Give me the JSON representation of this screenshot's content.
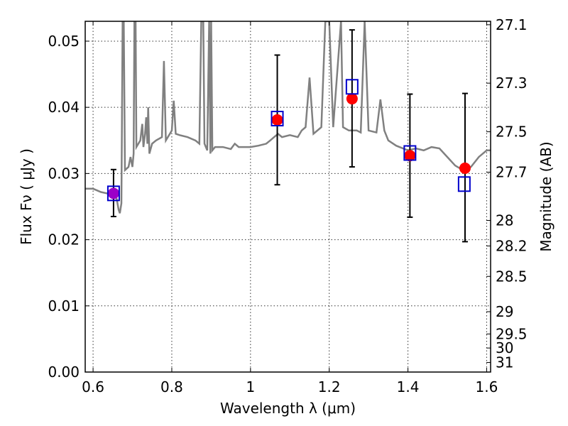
{
  "chart_data": {
    "type": "scatter",
    "xlabel": "Wavelength  λ (μm)",
    "ylabel": "Flux  Fν  ( μJy )",
    "ylabel_right": "Magnitude (AB)",
    "xlim": [
      0.58,
      1.61
    ],
    "ylim": [
      0.0,
      0.053
    ],
    "grid": true,
    "x_ticks": [
      0.6,
      0.8,
      1.0,
      1.2,
      1.4,
      1.6
    ],
    "x_tick_labels": [
      "0.6",
      "0.8",
      "1",
      "1.2",
      "1.4",
      "1.6"
    ],
    "y_ticks": [
      0.0,
      0.01,
      0.02,
      0.03,
      0.04,
      0.05
    ],
    "y_tick_labels": [
      "0.00",
      "0.01",
      "0.02",
      "0.03",
      "0.04",
      "0.05"
    ],
    "right_ticks": [
      {
        "label": "27.1",
        "value": 27.1
      },
      {
        "label": "27.3",
        "value": 27.3
      },
      {
        "label": "27.5",
        "value": 27.5
      },
      {
        "label": "27.7",
        "value": 27.7
      },
      {
        "label": "28",
        "value": 28.0
      },
      {
        "label": "28.2",
        "value": 28.2
      },
      {
        "label": "28.5",
        "value": 28.5
      },
      {
        "label": "29",
        "value": 29.0
      },
      {
        "label": "29.5",
        "value": 29.5
      },
      {
        "label": "30",
        "value": 30.0
      },
      {
        "label": "31",
        "value": 31.0
      }
    ],
    "series": [
      {
        "type": "line",
        "color": "#808080",
        "points": [
          [
            0.58,
            0.0277
          ],
          [
            0.6,
            0.0277
          ],
          [
            0.62,
            0.0272
          ],
          [
            0.635,
            0.027
          ],
          [
            0.645,
            0.0268
          ],
          [
            0.66,
            0.0262
          ],
          [
            0.665,
            0.0245
          ],
          [
            0.668,
            0.024
          ],
          [
            0.672,
            0.0255
          ],
          [
            0.675,
            0.053
          ],
          [
            0.678,
            0.053
          ],
          [
            0.681,
            0.0305
          ],
          [
            0.69,
            0.031
          ],
          [
            0.695,
            0.0325
          ],
          [
            0.7,
            0.031
          ],
          [
            0.703,
            0.033
          ],
          [
            0.705,
            0.053
          ],
          [
            0.708,
            0.053
          ],
          [
            0.71,
            0.034
          ],
          [
            0.72,
            0.035
          ],
          [
            0.725,
            0.0375
          ],
          [
            0.728,
            0.034
          ],
          [
            0.732,
            0.036
          ],
          [
            0.735,
            0.0385
          ],
          [
            0.738,
            0.0345
          ],
          [
            0.74,
            0.04
          ],
          [
            0.743,
            0.033
          ],
          [
            0.75,
            0.0345
          ],
          [
            0.76,
            0.035
          ],
          [
            0.775,
            0.0355
          ],
          [
            0.78,
            0.047
          ],
          [
            0.785,
            0.035
          ],
          [
            0.795,
            0.036
          ],
          [
            0.8,
            0.0365
          ],
          [
            0.805,
            0.041
          ],
          [
            0.81,
            0.036
          ],
          [
            0.82,
            0.0358
          ],
          [
            0.84,
            0.0355
          ],
          [
            0.86,
            0.035
          ],
          [
            0.87,
            0.0345
          ],
          [
            0.875,
            0.053
          ],
          [
            0.88,
            0.053
          ],
          [
            0.883,
            0.0345
          ],
          [
            0.89,
            0.0335
          ],
          [
            0.895,
            0.053
          ],
          [
            0.898,
            0.033
          ],
          [
            0.9,
            0.053
          ],
          [
            0.903,
            0.0335
          ],
          [
            0.91,
            0.034
          ],
          [
            0.93,
            0.034
          ],
          [
            0.95,
            0.0337
          ],
          [
            0.96,
            0.0345
          ],
          [
            0.97,
            0.034
          ],
          [
            0.98,
            0.034
          ],
          [
            1.0,
            0.034
          ],
          [
            1.02,
            0.0342
          ],
          [
            1.04,
            0.0345
          ],
          [
            1.05,
            0.035
          ],
          [
            1.06,
            0.0355
          ],
          [
            1.07,
            0.036
          ],
          [
            1.08,
            0.0355
          ],
          [
            1.1,
            0.0358
          ],
          [
            1.12,
            0.0355
          ],
          [
            1.13,
            0.0365
          ],
          [
            1.14,
            0.037
          ],
          [
            1.15,
            0.0445
          ],
          [
            1.16,
            0.036
          ],
          [
            1.18,
            0.037
          ],
          [
            1.19,
            0.053
          ],
          [
            1.2,
            0.053
          ],
          [
            1.21,
            0.037
          ],
          [
            1.23,
            0.053
          ],
          [
            1.235,
            0.037
          ],
          [
            1.25,
            0.0365
          ],
          [
            1.27,
            0.0365
          ],
          [
            1.28,
            0.0362
          ],
          [
            1.29,
            0.053
          ],
          [
            1.3,
            0.0365
          ],
          [
            1.32,
            0.0362
          ],
          [
            1.33,
            0.0412
          ],
          [
            1.34,
            0.0365
          ],
          [
            1.35,
            0.035
          ],
          [
            1.37,
            0.0342
          ],
          [
            1.4,
            0.0335
          ],
          [
            1.42,
            0.0338
          ],
          [
            1.44,
            0.0335
          ],
          [
            1.46,
            0.034
          ],
          [
            1.48,
            0.0338
          ],
          [
            1.5,
            0.0325
          ],
          [
            1.52,
            0.0312
          ],
          [
            1.54,
            0.0305
          ],
          [
            1.56,
            0.031
          ],
          [
            1.58,
            0.0325
          ],
          [
            1.6,
            0.0335
          ],
          [
            1.61,
            0.0335
          ]
        ]
      },
      {
        "type": "errorbar_points",
        "marker": "circle",
        "color": "#ff0000",
        "points": [
          {
            "x": 0.652,
            "y": 0.027,
            "err_low": 0.0235,
            "err_high": 0.0306,
            "color": "#9c00c8"
          },
          {
            "x": 1.068,
            "y": 0.0381,
            "err_low": 0.0283,
            "err_high": 0.0479
          },
          {
            "x": 1.258,
            "y": 0.0413,
            "err_low": 0.031,
            "err_high": 0.0517
          },
          {
            "x": 1.405,
            "y": 0.0327,
            "err_low": 0.0234,
            "err_high": 0.042
          },
          {
            "x": 1.545,
            "y": 0.0308,
            "err_low": 0.0197,
            "err_high": 0.0421
          }
        ]
      },
      {
        "type": "scatter",
        "marker": "square-open",
        "color": "#0000cc",
        "points": [
          {
            "x": 0.652,
            "y": 0.027
          },
          {
            "x": 1.068,
            "y": 0.0383
          },
          {
            "x": 1.258,
            "y": 0.0431
          },
          {
            "x": 1.405,
            "y": 0.0331
          },
          {
            "x": 1.543,
            "y": 0.0284
          }
        ]
      }
    ]
  }
}
